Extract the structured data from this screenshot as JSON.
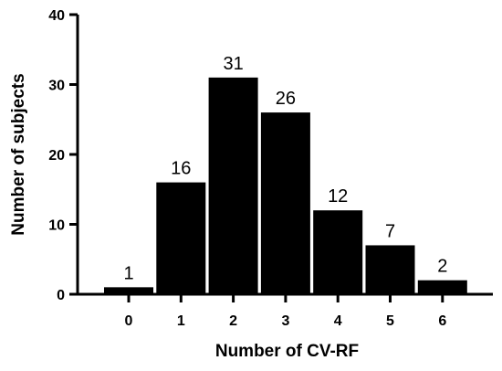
{
  "chart_data": {
    "type": "bar",
    "categories": [
      "0",
      "1",
      "2",
      "3",
      "4",
      "5",
      "6"
    ],
    "values": [
      1,
      16,
      31,
      26,
      12,
      7,
      2
    ],
    "data_labels": [
      "1",
      "16",
      "31",
      "26",
      "12",
      "7",
      "2"
    ],
    "title": "",
    "xlabel": "Number of CV-RF",
    "ylabel": "Number of subjects",
    "ylim": [
      0,
      40
    ],
    "yticks": [
      "0",
      "10",
      "20",
      "30",
      "40"
    ],
    "grid": false,
    "bar_color": "#000000"
  }
}
